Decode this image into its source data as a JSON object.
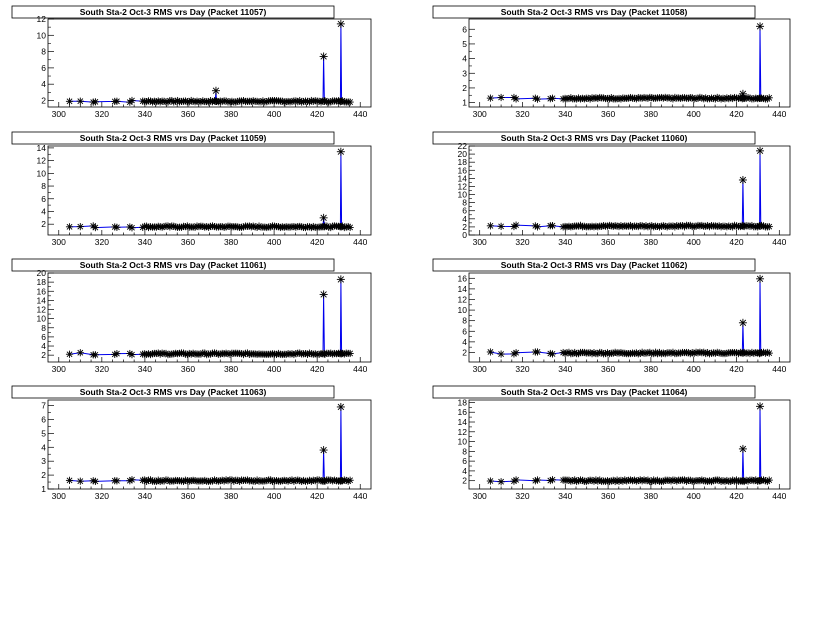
{
  "colors": {
    "line": "#0000ee",
    "marker": "#000000",
    "frame": "#000000",
    "background": "#ffffff"
  },
  "chart_data": [
    {
      "type": "line",
      "title": "South Sta-2 Oct-3 RMS vrs Day (Packet 11057)",
      "xlim": [
        295,
        445
      ],
      "xticks": [
        300,
        320,
        340,
        360,
        380,
        400,
        420,
        440
      ],
      "ylim": [
        1.2,
        12
      ],
      "yticks": [
        2,
        4,
        6,
        8,
        10,
        12
      ],
      "baseline": 1.9,
      "spikes": [
        {
          "x": 373,
          "y": 3.2
        },
        {
          "x": 423,
          "y": 7.4
        },
        {
          "x": 431,
          "y": 11.4
        }
      ]
    },
    {
      "type": "line",
      "title": "South Sta-2 Oct-3 RMS vrs Day (Packet 11058)",
      "xlim": [
        295,
        445
      ],
      "xticks": [
        300,
        320,
        340,
        360,
        380,
        400,
        420,
        440
      ],
      "ylim": [
        0.7,
        6.7
      ],
      "yticks": [
        1,
        2,
        3,
        4,
        5,
        6
      ],
      "baseline": 1.3,
      "spikes": [
        {
          "x": 423,
          "y": 1.6
        },
        {
          "x": 431,
          "y": 6.2
        }
      ]
    },
    {
      "type": "line",
      "title": "South Sta-2 Oct-3 RMS vrs Day (Packet 11059)",
      "xlim": [
        295,
        445
      ],
      "xticks": [
        300,
        320,
        340,
        360,
        380,
        400,
        420,
        440
      ],
      "ylim": [
        0.3,
        14.3
      ],
      "yticks": [
        2,
        4,
        6,
        8,
        10,
        12,
        14
      ],
      "baseline": 1.6,
      "spikes": [
        {
          "x": 423,
          "y": 3.0
        },
        {
          "x": 431,
          "y": 13.4
        }
      ]
    },
    {
      "type": "line",
      "title": "South Sta-2 Oct-3 RMS vrs Day (Packet 11060)",
      "xlim": [
        295,
        445
      ],
      "xticks": [
        300,
        320,
        340,
        360,
        380,
        400,
        420,
        440
      ],
      "ylim": [
        0,
        22
      ],
      "yticks": [
        0,
        2,
        4,
        6,
        8,
        10,
        12,
        14,
        16,
        18,
        20,
        22
      ],
      "baseline": 2.2,
      "spikes": [
        {
          "x": 423,
          "y": 13.6
        },
        {
          "x": 431,
          "y": 20.8
        }
      ]
    },
    {
      "type": "line",
      "title": "South Sta-2 Oct-3 RMS vrs Day (Packet 11061)",
      "xlim": [
        295,
        445
      ],
      "xticks": [
        300,
        320,
        340,
        360,
        380,
        400,
        420,
        440
      ],
      "ylim": [
        0.5,
        20
      ],
      "yticks": [
        2,
        4,
        6,
        8,
        10,
        12,
        14,
        16,
        18,
        20
      ],
      "baseline": 2.3,
      "spikes": [
        {
          "x": 423,
          "y": 15.3
        },
        {
          "x": 431,
          "y": 18.6
        }
      ]
    },
    {
      "type": "line",
      "title": "South Sta-2 Oct-3 RMS vrs Day (Packet 11062)",
      "xlim": [
        295,
        445
      ],
      "xticks": [
        300,
        320,
        340,
        360,
        380,
        400,
        420,
        440
      ],
      "ylim": [
        0.2,
        17
      ],
      "yticks": [
        2,
        4,
        6,
        8,
        10,
        12,
        14,
        16
      ],
      "baseline": 1.9,
      "spikes": [
        {
          "x": 423,
          "y": 7.6
        },
        {
          "x": 431,
          "y": 15.9
        }
      ]
    },
    {
      "type": "line",
      "title": "South Sta-2 Oct-3 RMS vrs Day (Packet 11063)",
      "xlim": [
        295,
        445
      ],
      "xticks": [
        300,
        320,
        340,
        360,
        380,
        400,
        420,
        440
      ],
      "ylim": [
        1,
        7.4
      ],
      "yticks": [
        1,
        2,
        3,
        4,
        5,
        6,
        7
      ],
      "baseline": 1.6,
      "spikes": [
        {
          "x": 423,
          "y": 3.8
        },
        {
          "x": 431,
          "y": 6.9
        }
      ]
    },
    {
      "type": "line",
      "title": "South Sta-2 Oct-3 RMS vrs Day (Packet 11064)",
      "xlim": [
        295,
        445
      ],
      "xticks": [
        300,
        320,
        340,
        360,
        380,
        400,
        420,
        440
      ],
      "ylim": [
        0.3,
        18.5
      ],
      "yticks": [
        2,
        4,
        6,
        8,
        10,
        12,
        14,
        16,
        18
      ],
      "baseline": 2.0,
      "spikes": [
        {
          "x": 423,
          "y": 8.5
        },
        {
          "x": 431,
          "y": 17.2
        }
      ]
    }
  ]
}
